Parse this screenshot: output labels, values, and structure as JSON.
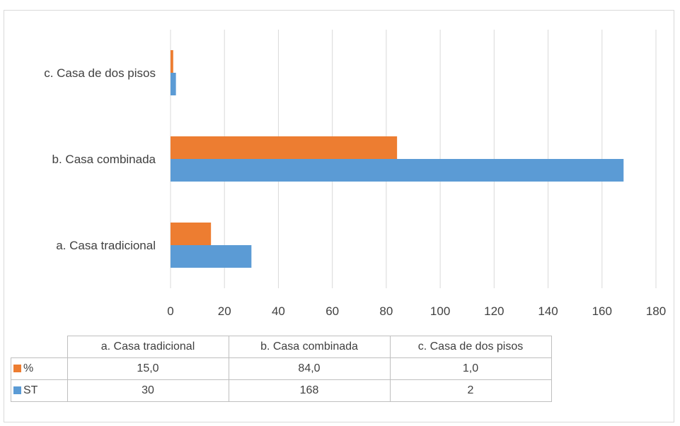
{
  "chart_data": {
    "type": "bar",
    "orientation": "horizontal",
    "categories": [
      "a. Casa tradicional",
      "b. Casa combinada",
      "c. Casa de dos pisos"
    ],
    "series": [
      {
        "name": "%",
        "color": "#ed7d31",
        "values": [
          15.0,
          84.0,
          1.0
        ],
        "table_values": [
          "15,0",
          "84,0",
          "1,0"
        ]
      },
      {
        "name": "ST",
        "color": "#5b9bd5",
        "values": [
          30,
          168,
          2
        ],
        "table_values": [
          "30",
          "168",
          "2"
        ]
      }
    ],
    "xlim": [
      0,
      180
    ],
    "xticks": [
      "0",
      "20",
      "40",
      "60",
      "80",
      "100",
      "120",
      "140",
      "160",
      "180"
    ],
    "grid": true,
    "legend": "data-table-below"
  }
}
